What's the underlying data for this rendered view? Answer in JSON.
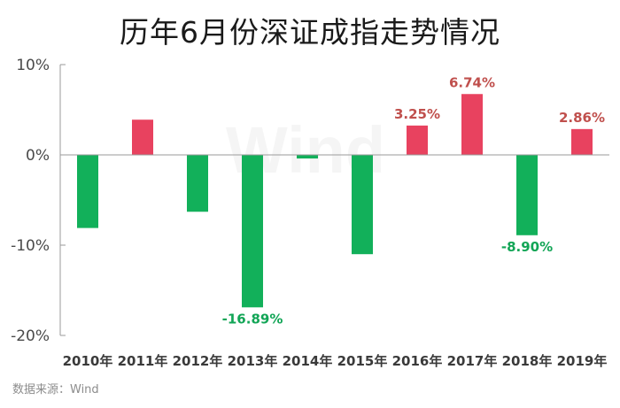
{
  "chart_data": {
    "type": "bar",
    "title": "历年6月份深证成指走势情况",
    "categories": [
      "2010年",
      "2011年",
      "2012年",
      "2013年",
      "2014年",
      "2015年",
      "2016年",
      "2017年",
      "2018年",
      "2019年"
    ],
    "values": [
      -8.1,
      3.9,
      -6.3,
      -16.89,
      -0.4,
      -11.0,
      3.25,
      6.74,
      -8.9,
      2.86
    ],
    "data_labels": [
      "",
      "",
      "",
      "-16.89%",
      "",
      "",
      "3.25%",
      "6.74%",
      "-8.90%",
      "2.86%"
    ],
    "ylim": [
      -20,
      10
    ],
    "yticks": [
      10,
      0,
      -10,
      -20
    ],
    "ytick_labels": [
      "10%",
      "0%",
      "-10%",
      "-20%"
    ],
    "xlabel": "",
    "ylabel": "",
    "grid": false,
    "colors": {
      "positive": "#e8425f",
      "negative": "#12b05a",
      "positive_label": "#c0504d",
      "negative_label": "#12a556"
    }
  },
  "watermark": "Wind",
  "source": "数据来源：Wind"
}
